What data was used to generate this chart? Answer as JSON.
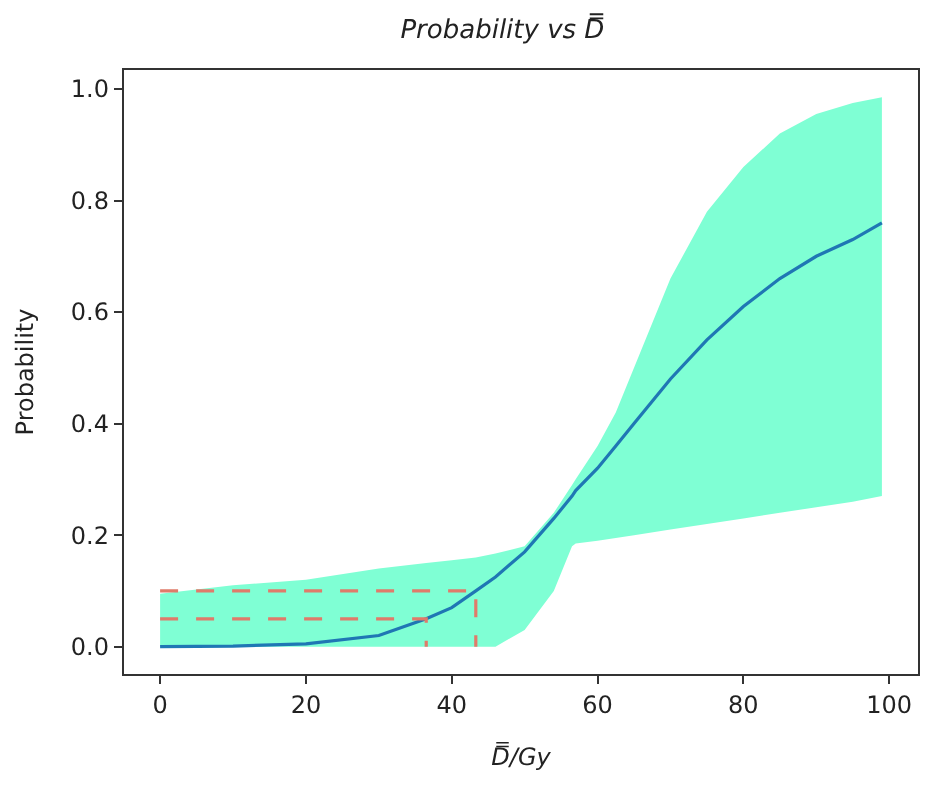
{
  "chart_data": {
    "type": "line",
    "title": "Probability vs D̿",
    "xlabel": "D̿/Gy",
    "ylabel": "Probability",
    "xlim": [
      -4.95,
      103.95
    ],
    "xticks": [
      0,
      20,
      40,
      60,
      80,
      100
    ],
    "ylim": [
      -0.049,
      1.034
    ],
    "yticks": [
      {
        "value": 0,
        "label": "0.0"
      },
      {
        "value": 0.2,
        "label": "0.2"
      },
      {
        "value": 0.4,
        "label": "0.4"
      },
      {
        "value": 0.6,
        "label": "0.6"
      },
      {
        "value": 0.8,
        "label": "0.8"
      },
      {
        "value": 1,
        "label": "1.0"
      }
    ],
    "series": [
      {
        "color": "#1f77b4",
        "x": [
          0,
          10,
          20,
          30,
          36.5,
          40,
          43.3,
          46,
          50,
          54,
          56.5,
          57,
          60,
          62.5,
          65,
          70,
          75,
          80,
          85,
          90,
          95,
          99
        ],
        "values": [
          0,
          0.001,
          0.005,
          0.02,
          0.05,
          0.07,
          0.1,
          0.125,
          0.17,
          0.23,
          0.27,
          0.28,
          0.32,
          0.36,
          0.4,
          0.48,
          0.55,
          0.61,
          0.66,
          0.7,
          0.73,
          0.76
        ],
        "lower": [
          0,
          0,
          0,
          0,
          0,
          0,
          0,
          0,
          0.03,
          0.1,
          0.18,
          0.185,
          0.19,
          0.195,
          0.2,
          0.21,
          0.22,
          0.23,
          0.24,
          0.25,
          0.26,
          0.27
        ],
        "upper": [
          0.095,
          0.11,
          0.12,
          0.14,
          0.15,
          0.155,
          0.16,
          0.167,
          0.18,
          0.24,
          0.29,
          0.3,
          0.36,
          0.42,
          0.5,
          0.66,
          0.78,
          0.86,
          0.92,
          0.955,
          0.975,
          0.985
        ]
      },
      {
        "color": "#e07b6a",
        "line_style": "dashed",
        "x": [
          0,
          43.3,
          43.3
        ],
        "values": [
          0.1,
          0.1,
          0
        ]
      },
      {
        "color": "#e07b6a",
        "line_style": "dashed",
        "x": [
          0,
          36.5,
          36.5
        ],
        "values": [
          0.05,
          0.05,
          0
        ]
      }
    ]
  }
}
